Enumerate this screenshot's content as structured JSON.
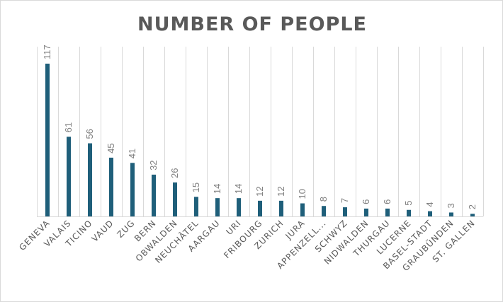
{
  "chart_data": {
    "type": "bar",
    "title": "NUMBER OF PEOPLE",
    "xlabel": "",
    "ylabel": "",
    "categories": [
      "GENEVA",
      "VALAIS",
      "TICINO",
      "VAUD",
      "ZUG",
      "BERN",
      "OBWALDEN",
      "NEUCHÂTEL",
      "AARGAU",
      "URI",
      "FRIBOURG",
      "ZURICH",
      "JURA",
      "APPENZELL...",
      "SCHWYZ",
      "NIDWALDEN",
      "THURGAU",
      "LUCERNE",
      "BASEL-STADT",
      "GRAUBÜNDEN",
      "ST. GALLEN"
    ],
    "values": [
      117,
      61,
      56,
      45,
      41,
      32,
      26,
      15,
      14,
      14,
      12,
      12,
      10,
      8,
      7,
      6,
      6,
      5,
      4,
      3,
      2
    ],
    "ylim": [
      0,
      130
    ],
    "grid": "vertical",
    "legend": "none",
    "bar_color": "#1f5f7a",
    "label_color": "#7f7f7f"
  }
}
